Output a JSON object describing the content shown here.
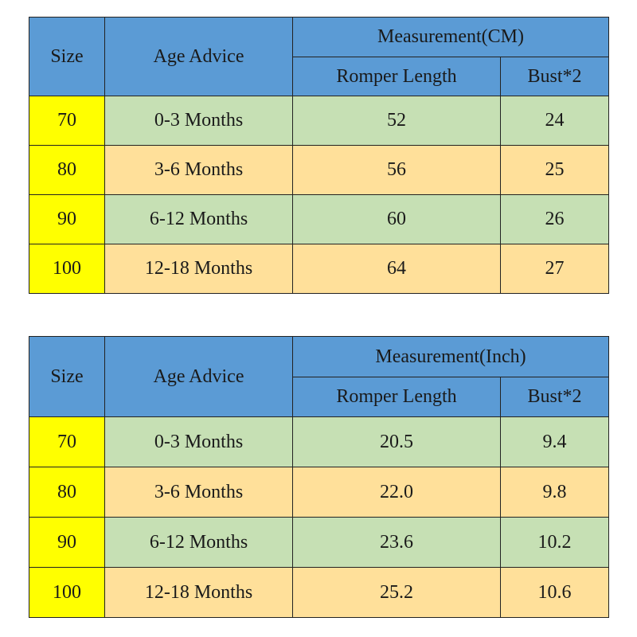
{
  "tables": [
    {
      "headers": {
        "size": "Size",
        "age": "Age Advice",
        "measurement": "Measurement(CM)",
        "length": "Romper Length",
        "bust": "Bust*2"
      },
      "rows": [
        {
          "size": "70",
          "age": "0-3 Months",
          "length": "52",
          "bust": "24"
        },
        {
          "size": "80",
          "age": "3-6 Months",
          "length": "56",
          "bust": "25"
        },
        {
          "size": "90",
          "age": "6-12 Months",
          "length": "60",
          "bust": "26"
        },
        {
          "size": "100",
          "age": "12-18 Months",
          "length": "64",
          "bust": "27"
        }
      ]
    },
    {
      "headers": {
        "size": "Size",
        "age": "Age Advice",
        "measurement": "Measurement(Inch)",
        "length": "Romper Length",
        "bust": "Bust*2"
      },
      "rows": [
        {
          "size": "70",
          "age": "0-3 Months",
          "length": "20.5",
          "bust": "9.4"
        },
        {
          "size": "80",
          "age": "3-6 Months",
          "length": "22.0",
          "bust": "9.8"
        },
        {
          "size": "90",
          "age": "6-12 Months",
          "length": "23.6",
          "bust": "10.2"
        },
        {
          "size": "100",
          "age": "12-18 Months",
          "length": "25.2",
          "bust": "10.6"
        }
      ]
    }
  ],
  "colors": {
    "header": "#5b9bd5",
    "size_cell": "#ffff00",
    "row_green": "#c6e0b4",
    "row_peach": "#ffe09a",
    "border": "#222222"
  }
}
